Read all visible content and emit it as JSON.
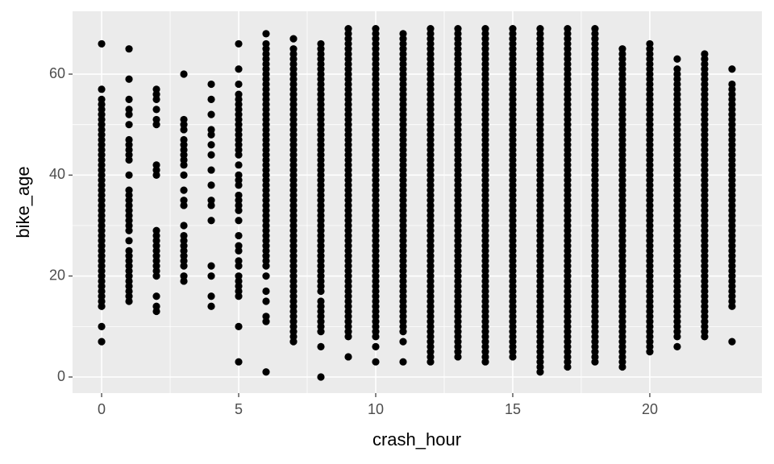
{
  "chart_data": {
    "type": "scatter",
    "x_label": "crash_hour",
    "y_label": "bike_age",
    "color": "#000000",
    "grid": true,
    "xlim": [
      -1.06,
      24.09
    ],
    "ylim": [
      -3.19,
      72.45
    ],
    "xticks": [
      0,
      5,
      10,
      15,
      20
    ],
    "yticks": [
      0,
      20,
      40,
      60
    ],
    "x": [
      0,
      1,
      2,
      3,
      4,
      5,
      6,
      7,
      8,
      9,
      10,
      11,
      12,
      13,
      14,
      15,
      16,
      17,
      18,
      19,
      20,
      21,
      22,
      23
    ],
    "values": [
      [
        7,
        10,
        14,
        15,
        16,
        17,
        18,
        19,
        20,
        21,
        22,
        23,
        24,
        25,
        26,
        27,
        28,
        29,
        30,
        31,
        32,
        33,
        34,
        35,
        36,
        37,
        38,
        39,
        40,
        41,
        42,
        43,
        44,
        45,
        46,
        47,
        48,
        49,
        50,
        51,
        52,
        53,
        54,
        55,
        57,
        66
      ],
      [
        15,
        16,
        17,
        18,
        19,
        20,
        21,
        22,
        23,
        24,
        25,
        27,
        29,
        30,
        31,
        32,
        33,
        34,
        35,
        36,
        37,
        40,
        43,
        44,
        45,
        46,
        47,
        50,
        52,
        53,
        55,
        59,
        65
      ],
      [
        13,
        14,
        16,
        20,
        21,
        22,
        23,
        24,
        25,
        26,
        27,
        28,
        29,
        40,
        41,
        42,
        50,
        51,
        53,
        55,
        56,
        57
      ],
      [
        19,
        20,
        22,
        23,
        24,
        25,
        26,
        27,
        28,
        30,
        34,
        35,
        37,
        40,
        42,
        43,
        44,
        45,
        46,
        47,
        49,
        50,
        51,
        60
      ],
      [
        14,
        16,
        20,
        22,
        31,
        34,
        35,
        38,
        41,
        44,
        46,
        48,
        49,
        52,
        55,
        58
      ],
      [
        3,
        10,
        16,
        17,
        18,
        19,
        20,
        22,
        23,
        25,
        26,
        28,
        31,
        33,
        34,
        35,
        36,
        38,
        39,
        40,
        42,
        44,
        45,
        46,
        47,
        48,
        49,
        50,
        51,
        52,
        53,
        54,
        55,
        56,
        58,
        61,
        66
      ],
      [
        1,
        11,
        12,
        15,
        17,
        20,
        22,
        23,
        24,
        25,
        26,
        27,
        28,
        29,
        30,
        31,
        32,
        33,
        34,
        35,
        36,
        37,
        38,
        39,
        40,
        41,
        42,
        43,
        44,
        45,
        46,
        47,
        48,
        49,
        50,
        51,
        52,
        53,
        54,
        55,
        56,
        57,
        58,
        59,
        60,
        61,
        62,
        63,
        64,
        65,
        66,
        68
      ],
      [
        7,
        8,
        9,
        10,
        11,
        12,
        13,
        14,
        15,
        16,
        17,
        18,
        19,
        20,
        21,
        22,
        23,
        24,
        25,
        26,
        27,
        28,
        29,
        30,
        31,
        32,
        33,
        34,
        35,
        36,
        37,
        38,
        39,
        40,
        41,
        42,
        43,
        44,
        45,
        46,
        47,
        48,
        49,
        50,
        51,
        52,
        53,
        54,
        55,
        56,
        57,
        58,
        59,
        60,
        61,
        62,
        63,
        64,
        65,
        67
      ],
      [
        0,
        6,
        9,
        10,
        11,
        12,
        13,
        14,
        15,
        17,
        18,
        19,
        20,
        21,
        22,
        23,
        24,
        25,
        26,
        27,
        28,
        29,
        30,
        31,
        32,
        33,
        34,
        35,
        36,
        37,
        38,
        39,
        40,
        41,
        42,
        43,
        44,
        45,
        46,
        47,
        48,
        49,
        50,
        51,
        52,
        53,
        54,
        55,
        56,
        57,
        58,
        59,
        60,
        61,
        62,
        63,
        64,
        65,
        66
      ],
      [
        4,
        8,
        9,
        10,
        11,
        12,
        13,
        14,
        15,
        16,
        17,
        18,
        19,
        20,
        21,
        22,
        23,
        24,
        25,
        26,
        27,
        28,
        29,
        30,
        31,
        32,
        33,
        34,
        35,
        36,
        37,
        38,
        39,
        40,
        41,
        42,
        43,
        44,
        45,
        46,
        47,
        48,
        49,
        50,
        51,
        52,
        53,
        54,
        55,
        56,
        57,
        58,
        59,
        60,
        61,
        62,
        63,
        64,
        65,
        66,
        67,
        68,
        69
      ],
      [
        3,
        6,
        8,
        9,
        10,
        11,
        12,
        13,
        14,
        15,
        16,
        17,
        18,
        19,
        20,
        21,
        22,
        23,
        24,
        25,
        26,
        27,
        28,
        29,
        30,
        31,
        32,
        33,
        34,
        35,
        36,
        37,
        38,
        39,
        40,
        41,
        42,
        43,
        44,
        45,
        46,
        47,
        48,
        49,
        50,
        51,
        52,
        53,
        54,
        55,
        56,
        57,
        58,
        59,
        60,
        61,
        62,
        63,
        64,
        65,
        66,
        67,
        68,
        69
      ],
      [
        3,
        7,
        9,
        10,
        11,
        12,
        13,
        14,
        15,
        16,
        17,
        18,
        19,
        20,
        21,
        22,
        23,
        24,
        25,
        26,
        27,
        28,
        29,
        30,
        31,
        32,
        33,
        34,
        35,
        36,
        37,
        38,
        39,
        40,
        41,
        42,
        43,
        44,
        45,
        46,
        47,
        48,
        49,
        50,
        51,
        52,
        53,
        54,
        55,
        56,
        57,
        58,
        59,
        60,
        61,
        62,
        63,
        64,
        65,
        66,
        67,
        68
      ],
      [
        3,
        4,
        5,
        6,
        7,
        8,
        9,
        10,
        11,
        12,
        13,
        14,
        15,
        16,
        17,
        18,
        19,
        20,
        21,
        22,
        23,
        24,
        25,
        26,
        27,
        28,
        29,
        30,
        31,
        32,
        33,
        34,
        35,
        36,
        37,
        38,
        39,
        40,
        41,
        42,
        43,
        44,
        45,
        46,
        47,
        48,
        49,
        50,
        51,
        52,
        53,
        54,
        55,
        56,
        57,
        58,
        59,
        60,
        61,
        62,
        63,
        64,
        65,
        66,
        67,
        68,
        69
      ],
      [
        4,
        5,
        6,
        7,
        8,
        9,
        10,
        11,
        12,
        13,
        14,
        15,
        16,
        17,
        18,
        19,
        20,
        21,
        22,
        23,
        24,
        25,
        26,
        27,
        28,
        29,
        30,
        31,
        32,
        33,
        34,
        35,
        36,
        37,
        38,
        39,
        40,
        41,
        42,
        43,
        44,
        45,
        46,
        47,
        48,
        49,
        50,
        51,
        52,
        53,
        54,
        55,
        56,
        57,
        58,
        59,
        60,
        61,
        62,
        63,
        64,
        65,
        66,
        67,
        68,
        69
      ],
      [
        3,
        4,
        5,
        6,
        7,
        8,
        9,
        10,
        11,
        12,
        13,
        14,
        15,
        16,
        17,
        18,
        19,
        20,
        21,
        22,
        23,
        24,
        25,
        26,
        27,
        28,
        29,
        30,
        31,
        32,
        33,
        34,
        35,
        36,
        37,
        38,
        39,
        40,
        41,
        42,
        43,
        44,
        45,
        46,
        47,
        48,
        49,
        50,
        51,
        52,
        53,
        54,
        55,
        56,
        57,
        58,
        59,
        60,
        61,
        62,
        63,
        64,
        65,
        66,
        67,
        68,
        69
      ],
      [
        4,
        5,
        6,
        7,
        8,
        9,
        10,
        11,
        12,
        13,
        14,
        15,
        16,
        17,
        18,
        19,
        20,
        21,
        22,
        23,
        24,
        25,
        26,
        27,
        28,
        29,
        30,
        31,
        32,
        33,
        34,
        35,
        36,
        37,
        38,
        39,
        40,
        41,
        42,
        43,
        44,
        45,
        46,
        47,
        48,
        49,
        50,
        51,
        52,
        53,
        54,
        55,
        56,
        57,
        58,
        59,
        60,
        61,
        62,
        63,
        64,
        65,
        66,
        67,
        68,
        69
      ],
      [
        1,
        2,
        3,
        4,
        5,
        6,
        7,
        8,
        9,
        10,
        11,
        12,
        13,
        14,
        15,
        16,
        17,
        18,
        19,
        20,
        21,
        22,
        23,
        24,
        25,
        26,
        27,
        28,
        29,
        30,
        31,
        32,
        33,
        34,
        35,
        36,
        37,
        38,
        39,
        40,
        41,
        42,
        43,
        44,
        45,
        46,
        47,
        48,
        49,
        50,
        51,
        52,
        53,
        54,
        55,
        56,
        57,
        58,
        59,
        60,
        61,
        62,
        63,
        64,
        65,
        66,
        67,
        68,
        69
      ],
      [
        2,
        3,
        4,
        5,
        6,
        7,
        8,
        9,
        10,
        11,
        12,
        13,
        14,
        15,
        16,
        17,
        18,
        19,
        20,
        21,
        22,
        23,
        24,
        25,
        26,
        27,
        28,
        29,
        30,
        31,
        32,
        33,
        34,
        35,
        36,
        37,
        38,
        39,
        40,
        41,
        42,
        43,
        44,
        45,
        46,
        47,
        48,
        49,
        50,
        51,
        52,
        53,
        54,
        55,
        56,
        57,
        58,
        59,
        60,
        61,
        62,
        63,
        64,
        65,
        66,
        67,
        68,
        69
      ],
      [
        3,
        4,
        5,
        6,
        7,
        8,
        9,
        10,
        11,
        12,
        13,
        14,
        15,
        16,
        17,
        18,
        19,
        20,
        21,
        22,
        23,
        24,
        25,
        26,
        27,
        28,
        29,
        30,
        31,
        32,
        33,
        34,
        35,
        36,
        37,
        38,
        39,
        40,
        41,
        42,
        43,
        44,
        45,
        46,
        47,
        48,
        49,
        50,
        51,
        52,
        53,
        54,
        55,
        56,
        57,
        58,
        59,
        60,
        61,
        62,
        63,
        64,
        65,
        66,
        67,
        68,
        69
      ],
      [
        2,
        3,
        4,
        5,
        6,
        7,
        8,
        9,
        10,
        11,
        12,
        13,
        14,
        15,
        16,
        17,
        18,
        19,
        20,
        21,
        22,
        23,
        24,
        25,
        26,
        27,
        28,
        29,
        30,
        31,
        32,
        33,
        34,
        35,
        36,
        37,
        38,
        39,
        40,
        41,
        42,
        43,
        44,
        45,
        46,
        47,
        48,
        49,
        50,
        51,
        52,
        53,
        54,
        55,
        56,
        57,
        58,
        59,
        60,
        61,
        62,
        63,
        64,
        65
      ],
      [
        5,
        6,
        7,
        8,
        9,
        10,
        11,
        12,
        13,
        14,
        15,
        16,
        17,
        18,
        19,
        20,
        21,
        22,
        23,
        24,
        25,
        26,
        27,
        28,
        29,
        30,
        31,
        32,
        33,
        34,
        35,
        36,
        37,
        38,
        39,
        40,
        41,
        42,
        43,
        44,
        45,
        46,
        47,
        48,
        49,
        50,
        51,
        52,
        53,
        54,
        55,
        56,
        57,
        58,
        59,
        60,
        61,
        62,
        63,
        64,
        65,
        66
      ],
      [
        6,
        8,
        9,
        10,
        11,
        12,
        13,
        14,
        15,
        16,
        17,
        18,
        19,
        20,
        21,
        22,
        23,
        24,
        25,
        26,
        27,
        28,
        29,
        30,
        31,
        32,
        33,
        34,
        35,
        36,
        37,
        38,
        39,
        40,
        41,
        42,
        43,
        44,
        45,
        46,
        47,
        48,
        49,
        50,
        51,
        52,
        53,
        54,
        55,
        56,
        57,
        58,
        59,
        60,
        61,
        63
      ],
      [
        8,
        9,
        10,
        11,
        12,
        13,
        14,
        15,
        16,
        17,
        18,
        19,
        20,
        21,
        22,
        23,
        24,
        25,
        26,
        27,
        28,
        29,
        30,
        31,
        32,
        33,
        34,
        35,
        36,
        37,
        38,
        39,
        40,
        41,
        42,
        43,
        44,
        45,
        46,
        47,
        48,
        49,
        50,
        51,
        52,
        53,
        54,
        55,
        56,
        57,
        58,
        59,
        60,
        61,
        62,
        63,
        64
      ],
      [
        7,
        14,
        15,
        16,
        17,
        18,
        19,
        20,
        21,
        22,
        23,
        24,
        25,
        26,
        27,
        28,
        29,
        30,
        31,
        32,
        33,
        34,
        35,
        36,
        37,
        38,
        39,
        40,
        41,
        42,
        43,
        44,
        45,
        46,
        47,
        48,
        49,
        50,
        51,
        52,
        53,
        54,
        55,
        56,
        57,
        58,
        61
      ]
    ]
  }
}
